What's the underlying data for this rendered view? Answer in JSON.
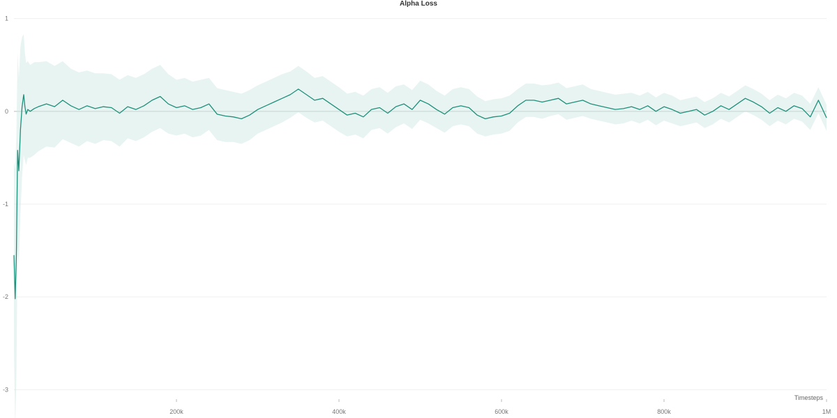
{
  "chart_data": {
    "type": "line",
    "title": "Alpha Loss",
    "xlabel": "Timesteps",
    "ylabel": "",
    "xlim": [
      0,
      1000000
    ],
    "ylim": [
      -3.05,
      1.05
    ],
    "grid": true,
    "colors": {
      "line": "#1f8f7a",
      "band": "#cfe9e6",
      "zero_line": "#bbbbbb",
      "grid": "#efefef"
    },
    "x_ticks": [
      {
        "value": 200000,
        "label": "200k"
      },
      {
        "value": 400000,
        "label": "400k"
      },
      {
        "value": 600000,
        "label": "600k"
      },
      {
        "value": 800000,
        "label": "800k"
      },
      {
        "value": 1000000,
        "label": "1M"
      }
    ],
    "y_ticks": [
      {
        "value": 1,
        "label": "1"
      },
      {
        "value": 0,
        "label": "0"
      },
      {
        "value": -1,
        "label": "-1"
      },
      {
        "value": -2,
        "label": "-2"
      },
      {
        "value": -3,
        "label": "-3"
      }
    ],
    "series": [
      {
        "x": [
          0,
          1500,
          3000,
          4500,
          6000,
          8000,
          10000,
          12000,
          13500,
          15000,
          17000,
          20000,
          25000,
          30000,
          40000,
          50000,
          60000,
          70000,
          80000,
          90000,
          100000,
          110000,
          120000,
          130000,
          140000,
          150000,
          160000,
          170000,
          180000,
          190000,
          200000,
          210000,
          220000,
          230000,
          240000,
          250000,
          260000,
          270000,
          280000,
          290000,
          300000,
          310000,
          320000,
          330000,
          340000,
          350000,
          360000,
          370000,
          380000,
          390000,
          400000,
          410000,
          420000,
          430000,
          440000,
          450000,
          460000,
          470000,
          480000,
          490000,
          500000,
          510000,
          520000,
          530000,
          540000,
          550000,
          560000,
          570000,
          580000,
          590000,
          600000,
          610000,
          620000,
          630000,
          640000,
          650000,
          660000,
          670000,
          680000,
          690000,
          700000,
          710000,
          720000,
          730000,
          740000,
          750000,
          760000,
          770000,
          780000,
          790000,
          800000,
          810000,
          820000,
          830000,
          840000,
          850000,
          860000,
          870000,
          880000,
          890000,
          900000,
          910000,
          920000,
          930000,
          940000,
          950000,
          960000,
          970000,
          980000,
          990000,
          1000000
        ],
        "y": [
          -1.55,
          -2.02,
          -1.55,
          -0.42,
          -0.64,
          -0.2,
          0.05,
          0.18,
          0.05,
          -0.03,
          0.02,
          0.0,
          0.03,
          0.05,
          0.08,
          0.05,
          0.12,
          0.06,
          0.02,
          0.06,
          0.03,
          0.05,
          0.04,
          -0.02,
          0.05,
          0.02,
          0.06,
          0.12,
          0.16,
          0.08,
          0.04,
          0.06,
          0.02,
          0.04,
          0.08,
          -0.03,
          -0.05,
          -0.06,
          -0.08,
          -0.04,
          0.02,
          0.06,
          0.1,
          0.14,
          0.18,
          0.24,
          0.18,
          0.12,
          0.14,
          0.08,
          0.02,
          -0.04,
          -0.02,
          -0.06,
          0.02,
          0.04,
          -0.02,
          0.05,
          0.08,
          0.02,
          0.12,
          0.08,
          0.02,
          -0.03,
          0.04,
          0.06,
          0.04,
          -0.04,
          -0.08,
          -0.06,
          -0.05,
          -0.02,
          0.06,
          0.12,
          0.12,
          0.1,
          0.12,
          0.14,
          0.08,
          0.1,
          0.12,
          0.08,
          0.06,
          0.04,
          0.02,
          0.03,
          0.05,
          0.02,
          0.06,
          0.0,
          0.05,
          0.02,
          -0.02,
          0.0,
          0.02,
          -0.04,
          0.0,
          0.06,
          0.02,
          0.08,
          0.14,
          0.1,
          0.05,
          -0.02,
          0.04,
          0.0,
          0.06,
          0.03,
          -0.06,
          0.12,
          -0.07
        ],
        "band": [
          1.0,
          1.4,
          1.3,
          1.05,
          1.0,
          0.9,
          0.75,
          0.65,
          0.58,
          0.55,
          0.52,
          0.5,
          0.5,
          0.48,
          0.46,
          0.44,
          0.42,
          0.4,
          0.4,
          0.38,
          0.38,
          0.36,
          0.36,
          0.36,
          0.34,
          0.34,
          0.34,
          0.34,
          0.34,
          0.32,
          0.3,
          0.3,
          0.3,
          0.3,
          0.28,
          0.28,
          0.28,
          0.27,
          0.27,
          0.27,
          0.26,
          0.26,
          0.26,
          0.26,
          0.25,
          0.25,
          0.25,
          0.24,
          0.24,
          0.24,
          0.24,
          0.23,
          0.23,
          0.23,
          0.22,
          0.22,
          0.22,
          0.22,
          0.21,
          0.21,
          0.21,
          0.21,
          0.2,
          0.2,
          0.2,
          0.2,
          0.2,
          0.2,
          0.19,
          0.19,
          0.19,
          0.19,
          0.18,
          0.18,
          0.18,
          0.18,
          0.17,
          0.17,
          0.17,
          0.17,
          0.17,
          0.16,
          0.16,
          0.16,
          0.16,
          0.16,
          0.15,
          0.15,
          0.15,
          0.15,
          0.15,
          0.15,
          0.14,
          0.14,
          0.14,
          0.14,
          0.14,
          0.14,
          0.14,
          0.14,
          0.14,
          0.14,
          0.14,
          0.14,
          0.14,
          0.14,
          0.14,
          0.14,
          0.14,
          0.14,
          0.14
        ]
      }
    ]
  }
}
